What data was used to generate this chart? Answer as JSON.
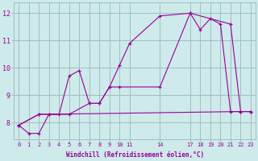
{
  "xlabel": "Windchill (Refroidissement éolien,°C)",
  "background_color": "#ceeaea",
  "grid_color": "#a0c0c0",
  "line_color": "#990099",
  "line1_x": [
    0,
    1,
    2,
    3,
    4,
    5,
    6,
    7,
    8,
    9,
    10,
    11,
    14,
    17,
    18,
    19,
    20,
    21,
    22,
    23
  ],
  "line1_y": [
    7.9,
    7.6,
    7.6,
    8.3,
    8.3,
    9.7,
    9.9,
    8.7,
    8.7,
    9.3,
    10.1,
    10.9,
    11.9,
    12.0,
    11.4,
    11.8,
    11.6,
    8.4,
    8.4,
    8.4
  ],
  "line2_x": [
    0,
    2,
    5,
    7,
    8,
    9,
    10,
    14,
    17,
    21,
    22,
    23
  ],
  "line2_y": [
    7.9,
    8.3,
    8.3,
    8.7,
    8.7,
    9.3,
    9.3,
    9.3,
    12.0,
    11.6,
    8.4,
    8.4
  ],
  "line3_x": [
    0,
    2,
    3,
    22,
    23
  ],
  "line3_y": [
    7.9,
    8.3,
    8.3,
    8.4,
    8.4
  ],
  "ylim": [
    7.4,
    12.4
  ],
  "xlim": [
    -0.5,
    23.5
  ],
  "yticks": [
    8,
    9,
    10,
    11,
    12
  ],
  "xticks": [
    0,
    1,
    2,
    3,
    4,
    5,
    6,
    7,
    8,
    9,
    10,
    11,
    14,
    17,
    18,
    19,
    20,
    21,
    22,
    23
  ]
}
